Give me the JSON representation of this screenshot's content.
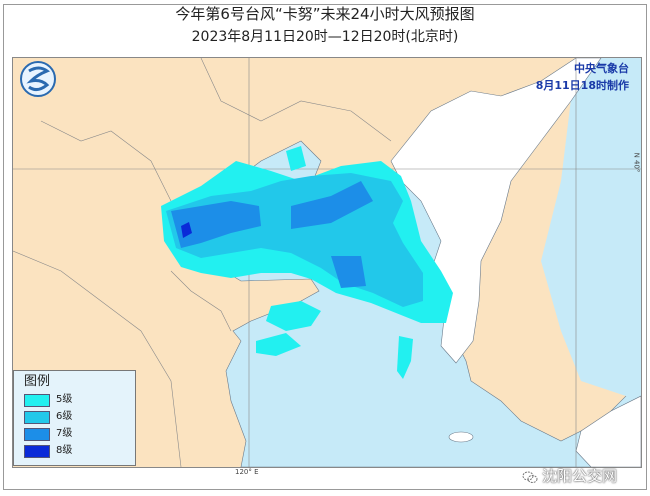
{
  "header": {
    "title": "今年第6号台风“卡努”未来24小时大风预报图",
    "subtitle": "2023年8月11日20时—12日20时(北京时)"
  },
  "agency": {
    "name": "中央气象台",
    "issued": "8月11日18时制作"
  },
  "legend": {
    "title": "图例",
    "items": [
      {
        "label": "5级",
        "color": "#22f0f0"
      },
      {
        "label": "6级",
        "color": "#22c8ea"
      },
      {
        "label": "7级",
        "color": "#1c8ee8"
      },
      {
        "label": "8级",
        "color": "#0a2ad8"
      }
    ]
  },
  "map": {
    "longitude_label": "120° E",
    "latitude_label": "N 40°",
    "colors": {
      "land": "#fbe3c0",
      "sea": "#c6eaf8",
      "foreign_land": "#ffffff"
    }
  },
  "watermark": "沈阳公交网"
}
